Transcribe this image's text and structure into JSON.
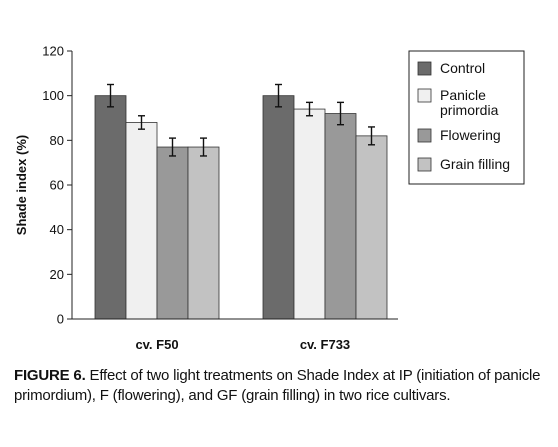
{
  "chart_data": {
    "type": "bar",
    "categories": [
      "cv. F50",
      "cv. F733"
    ],
    "series": [
      {
        "name": "Control",
        "values": [
          100,
          100
        ],
        "errors": [
          5,
          5
        ],
        "color": "#6b6b6b"
      },
      {
        "name": "Panicle primordia",
        "values": [
          88,
          94
        ],
        "errors": [
          3,
          3
        ],
        "color": "#f0f0f0"
      },
      {
        "name": "Flowering",
        "values": [
          77,
          92
        ],
        "errors": [
          4,
          5
        ],
        "color": "#999999"
      },
      {
        "name": "Grain filling",
        "values": [
          77,
          82
        ],
        "errors": [
          4,
          4
        ],
        "color": "#c2c2c2"
      }
    ],
    "title": "",
    "xlabel": "",
    "ylabel": "Shade index (%)",
    "ylim": [
      0,
      120
    ],
    "yticks": [
      "0",
      "20",
      "40",
      "60",
      "80",
      "100",
      "120"
    ],
    "legend_labels": [
      [
        "Control"
      ],
      [
        "Panicle",
        "primordia"
      ],
      [
        "Flowering"
      ],
      [
        "Grain filling"
      ]
    ],
    "legend": "right",
    "grid": false
  },
  "caption": {
    "label": "FIGURE 6.",
    "text": " Effect of two light treatments on Shade Index at IP (initiation of panicle primordium), F (flowering), and GF (grain filling) in two rice cultivars."
  }
}
